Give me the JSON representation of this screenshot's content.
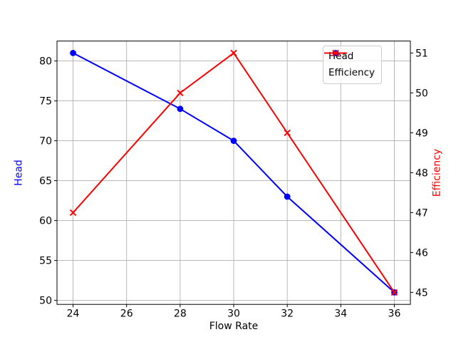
{
  "chart_data": {
    "type": "line",
    "title": "",
    "xlabel": "Flow Rate",
    "ylabel": "Head",
    "ylabel_right": "Efficiency",
    "x": [
      24,
      28,
      30,
      32,
      36
    ],
    "series": [
      {
        "name": "Head",
        "values": [
          81,
          74,
          70,
          63,
          51
        ],
        "axis": "left",
        "color": "#0000ff",
        "marker": "circle"
      },
      {
        "name": "Efficiency",
        "values": [
          47,
          50,
          51,
          49,
          45
        ],
        "axis": "right",
        "color": "#ff0000",
        "marker": "x"
      }
    ],
    "axes": {
      "x": {
        "label": "Flow Rate",
        "lim": [
          23.4,
          36.6
        ],
        "ticks": [
          24,
          26,
          28,
          30,
          32,
          34,
          36
        ]
      },
      "left": {
        "label": "Head",
        "lim": [
          49.5,
          82.5
        ],
        "ticks": [
          50,
          55,
          60,
          65,
          70,
          75,
          80
        ],
        "color": "#0000ff"
      },
      "right": {
        "label": "Efficiency",
        "lim": [
          44.7,
          51.3
        ],
        "ticks": [
          45,
          46,
          47,
          48,
          49,
          50,
          51
        ],
        "color": "#ff0000"
      }
    },
    "grid": {
      "on": true,
      "color": "#b0b0b0",
      "horizontal_from": "left",
      "vertical_from": "x"
    },
    "legend": {
      "position": "upper-right",
      "entries": [
        "Head",
        "Efficiency"
      ]
    },
    "style": {
      "spine_color": "#000000",
      "tick_label_color": "#000000",
      "background": "#ffffff"
    }
  }
}
